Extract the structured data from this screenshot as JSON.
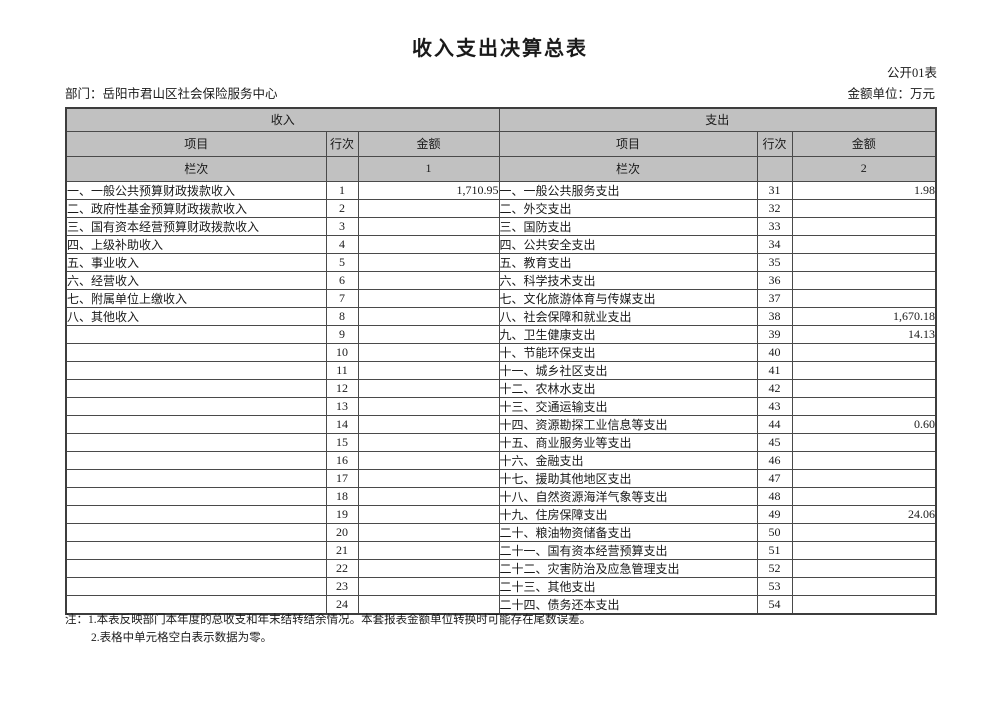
{
  "page": {
    "title": "收入支出决算总表",
    "form_code": "公开01表",
    "department": "部门：岳阳市君山区社会保险服务中心",
    "unit_label": "金额单位：万元",
    "notes": {
      "line1": "注：1.本表反映部门本年度的总收支和年末结转结余情况。本套报表金额单位转换时可能存在尾数误差。",
      "line2": "2.表格中单元格空白表示数据为零。"
    }
  },
  "table": {
    "income_section_label": "收入",
    "expense_section_label": "支出",
    "col_headers": {
      "item": "项目",
      "line_no": "行次",
      "amount": "金额"
    },
    "lanci_label": "栏次",
    "income_col_index": "1",
    "expense_col_index": "2",
    "rows": [
      {
        "income_item": "一、一般公共预算财政拨款收入",
        "income_line": "1",
        "income_amount": "1,710.95",
        "expense_item": "一、一般公共服务支出",
        "expense_line": "31",
        "expense_amount": "1.98"
      },
      {
        "income_item": "二、政府性基金预算财政拨款收入",
        "income_line": "2",
        "income_amount": "",
        "expense_item": "二、外交支出",
        "expense_line": "32",
        "expense_amount": ""
      },
      {
        "income_item": "三、国有资本经营预算财政拨款收入",
        "income_line": "3",
        "income_amount": "",
        "expense_item": "三、国防支出",
        "expense_line": "33",
        "expense_amount": ""
      },
      {
        "income_item": "四、上级补助收入",
        "income_line": "4",
        "income_amount": "",
        "expense_item": "四、公共安全支出",
        "expense_line": "34",
        "expense_amount": ""
      },
      {
        "income_item": "五、事业收入",
        "income_line": "5",
        "income_amount": "",
        "expense_item": "五、教育支出",
        "expense_line": "35",
        "expense_amount": ""
      },
      {
        "income_item": "六、经营收入",
        "income_line": "6",
        "income_amount": "",
        "expense_item": "六、科学技术支出",
        "expense_line": "36",
        "expense_amount": ""
      },
      {
        "income_item": "七、附属单位上缴收入",
        "income_line": "7",
        "income_amount": "",
        "expense_item": "七、文化旅游体育与传媒支出",
        "expense_line": "37",
        "expense_amount": ""
      },
      {
        "income_item": "八、其他收入",
        "income_line": "8",
        "income_amount": "",
        "expense_item": "八、社会保障和就业支出",
        "expense_line": "38",
        "expense_amount": "1,670.18"
      },
      {
        "income_item": "",
        "income_line": "9",
        "income_amount": "",
        "expense_item": "九、卫生健康支出",
        "expense_line": "39",
        "expense_amount": "14.13"
      },
      {
        "income_item": "",
        "income_line": "10",
        "income_amount": "",
        "expense_item": "十、节能环保支出",
        "expense_line": "40",
        "expense_amount": ""
      },
      {
        "income_item": "",
        "income_line": "11",
        "income_amount": "",
        "expense_item": "十一、城乡社区支出",
        "expense_line": "41",
        "expense_amount": ""
      },
      {
        "income_item": "",
        "income_line": "12",
        "income_amount": "",
        "expense_item": "十二、农林水支出",
        "expense_line": "42",
        "expense_amount": ""
      },
      {
        "income_item": "",
        "income_line": "13",
        "income_amount": "",
        "expense_item": "十三、交通运输支出",
        "expense_line": "43",
        "expense_amount": ""
      },
      {
        "income_item": "",
        "income_line": "14",
        "income_amount": "",
        "expense_item": "十四、资源勘探工业信息等支出",
        "expense_line": "44",
        "expense_amount": "0.60"
      },
      {
        "income_item": "",
        "income_line": "15",
        "income_amount": "",
        "expense_item": "十五、商业服务业等支出",
        "expense_line": "45",
        "expense_amount": ""
      },
      {
        "income_item": "",
        "income_line": "16",
        "income_amount": "",
        "expense_item": "十六、金融支出",
        "expense_line": "46",
        "expense_amount": ""
      },
      {
        "income_item": "",
        "income_line": "17",
        "income_amount": "",
        "expense_item": "十七、援助其他地区支出",
        "expense_line": "47",
        "expense_amount": ""
      },
      {
        "income_item": "",
        "income_line": "18",
        "income_amount": "",
        "expense_item": "十八、自然资源海洋气象等支出",
        "expense_line": "48",
        "expense_amount": ""
      },
      {
        "income_item": "",
        "income_line": "19",
        "income_amount": "",
        "expense_item": "十九、住房保障支出",
        "expense_line": "49",
        "expense_amount": "24.06"
      },
      {
        "income_item": "",
        "income_line": "20",
        "income_amount": "",
        "expense_item": "二十、粮油物资储备支出",
        "expense_line": "50",
        "expense_amount": ""
      },
      {
        "income_item": "",
        "income_line": "21",
        "income_amount": "",
        "expense_item": "二十一、国有资本经营预算支出",
        "expense_line": "51",
        "expense_amount": ""
      },
      {
        "income_item": "",
        "income_line": "22",
        "income_amount": "",
        "expense_item": "二十二、灾害防治及应急管理支出",
        "expense_line": "52",
        "expense_amount": ""
      },
      {
        "income_item": "",
        "income_line": "23",
        "income_amount": "",
        "expense_item": "二十三、其他支出",
        "expense_line": "53",
        "expense_amount": ""
      },
      {
        "income_item": "",
        "income_line": "24",
        "income_amount": "",
        "expense_item": "二十四、债务还本支出",
        "expense_line": "54",
        "expense_amount": ""
      }
    ]
  }
}
